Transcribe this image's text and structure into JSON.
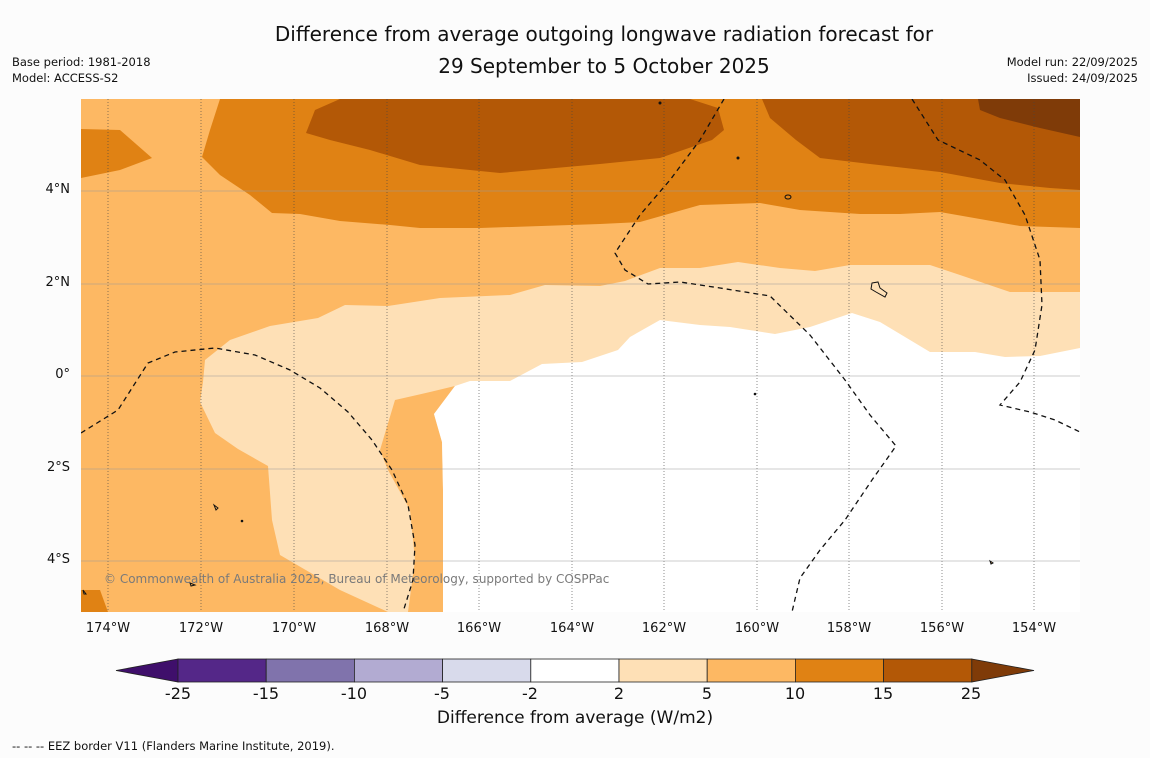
{
  "title_line1": "Difference from average outgoing longwave radiation forecast for",
  "title_line2": "29 September to 5 October 2025",
  "base_period": "Base period: 1981-2018",
  "model": "Model: ACCESS-S2",
  "model_run": "Model run: 22/09/2025",
  "issued": "Issued: 24/09/2025",
  "x_ticks": [
    "174°W",
    "172°W",
    "170°W",
    "168°W",
    "166°W",
    "164°W",
    "162°W",
    "160°W",
    "158°W",
    "156°W",
    "154°W"
  ],
  "y_ticks": [
    "4°N",
    "2°N",
    "0°",
    "2°S",
    "4°S"
  ],
  "copyright": "© Commonwealth of Australia 2025, Bureau of Meteorology, supported by COSPPac",
  "colorbar": {
    "title": "Difference from average (W/m2)",
    "labels": [
      "-25",
      "-15",
      "-10",
      "-5",
      "-2",
      "2",
      "5",
      "10",
      "15",
      "25"
    ],
    "colors": [
      "#3f0f6b",
      "#542788",
      "#8073ac",
      "#b2abd2",
      "#d8daeb",
      "#ffffff",
      "#fee0b6",
      "#fdb863",
      "#e08214",
      "#b35806",
      "#7f3b08"
    ]
  },
  "footer": "--  --  -- EEZ border V11 (Flanders Marine Institute, 2019).",
  "map_colors": {
    "c5_10": "#fdb863",
    "c10_15": "#e08214",
    "c15_25": "#b35806",
    "c25": "#7f3b08",
    "c2_5": "#fee0b6",
    "cneutral": "#ffffff"
  }
}
